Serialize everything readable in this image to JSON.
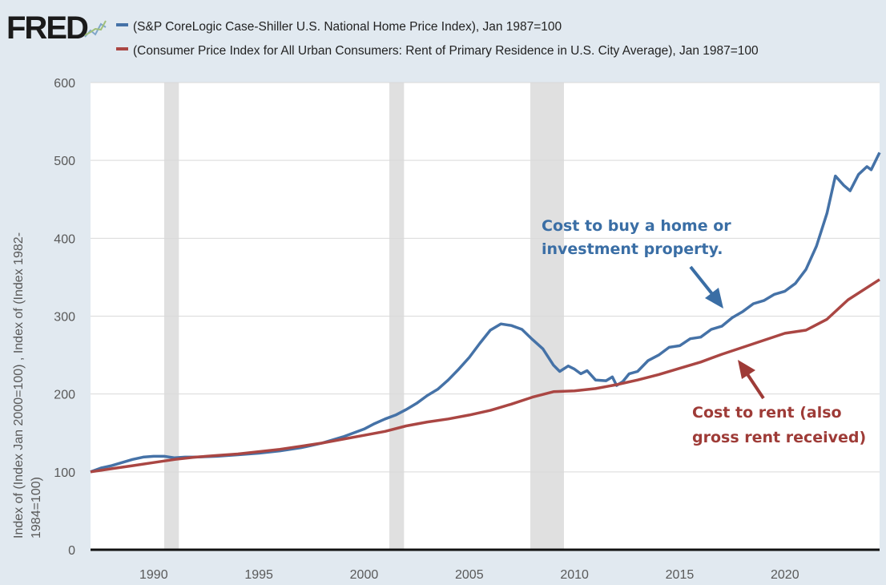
{
  "logo": {
    "text": "FRED"
  },
  "colors": {
    "series_home": "#4572a7",
    "series_rent": "#aa4643",
    "annotation_home": "#3a6ea5",
    "annotation_rent": "#9e3b37",
    "recession": "#e0e0e0",
    "grid": "#d9d9d9"
  },
  "chart_data": {
    "type": "line",
    "title": "",
    "xlabel": "",
    "ylabel": "Index of (Index Jan 2000=100) , Index of (Index 1982-1984=100)",
    "ylabel_lines": [
      "Index of (Index Jan 2000=100) , Index of (Index 1982-",
      "1984=100)"
    ],
    "xlim": [
      1987,
      2024.5
    ],
    "ylim": [
      0,
      600
    ],
    "yticks": [
      "0",
      "100",
      "200",
      "300",
      "400",
      "500",
      "600"
    ],
    "xticks": [
      "1990",
      "1995",
      "2000",
      "2005",
      "2010",
      "2015",
      "2020"
    ],
    "recessions": [
      [
        1990.5,
        1991.2
      ],
      [
        2001.2,
        2001.9
      ],
      [
        2007.9,
        2009.5
      ]
    ],
    "series": [
      {
        "name": "(S&P CoreLogic Case-Shiller U.S. National Home Price Index), Jan 1987=100",
        "points": [
          [
            1987.0,
            100
          ],
          [
            1987.5,
            105
          ],
          [
            1988.0,
            108
          ],
          [
            1988.5,
            112
          ],
          [
            1989.0,
            116
          ],
          [
            1989.5,
            119
          ],
          [
            1990.0,
            120
          ],
          [
            1990.5,
            120
          ],
          [
            1991.0,
            118
          ],
          [
            1991.5,
            119
          ],
          [
            1992.0,
            119
          ],
          [
            1993.0,
            120
          ],
          [
            1994.0,
            122
          ],
          [
            1995.0,
            124
          ],
          [
            1996.0,
            127
          ],
          [
            1997.0,
            131
          ],
          [
            1998.0,
            137
          ],
          [
            1999.0,
            145
          ],
          [
            2000.0,
            155
          ],
          [
            2000.5,
            162
          ],
          [
            2001.0,
            168
          ],
          [
            2001.5,
            173
          ],
          [
            2002.0,
            180
          ],
          [
            2002.5,
            188
          ],
          [
            2003.0,
            198
          ],
          [
            2003.5,
            206
          ],
          [
            2004.0,
            218
          ],
          [
            2004.5,
            232
          ],
          [
            2005.0,
            247
          ],
          [
            2005.5,
            265
          ],
          [
            2006.0,
            282
          ],
          [
            2006.5,
            290
          ],
          [
            2007.0,
            288
          ],
          [
            2007.5,
            283
          ],
          [
            2008.0,
            270
          ],
          [
            2008.5,
            258
          ],
          [
            2009.0,
            237
          ],
          [
            2009.3,
            229
          ],
          [
            2009.7,
            236
          ],
          [
            2010.0,
            232
          ],
          [
            2010.3,
            226
          ],
          [
            2010.6,
            230
          ],
          [
            2011.0,
            218
          ],
          [
            2011.5,
            217
          ],
          [
            2011.8,
            222
          ],
          [
            2012.0,
            211
          ],
          [
            2012.3,
            216
          ],
          [
            2012.6,
            226
          ],
          [
            2013.0,
            229
          ],
          [
            2013.5,
            243
          ],
          [
            2014.0,
            250
          ],
          [
            2014.5,
            260
          ],
          [
            2015.0,
            262
          ],
          [
            2015.5,
            271
          ],
          [
            2016.0,
            273
          ],
          [
            2016.5,
            283
          ],
          [
            2017.0,
            287
          ],
          [
            2017.5,
            298
          ],
          [
            2018.0,
            306
          ],
          [
            2018.5,
            316
          ],
          [
            2019.0,
            320
          ],
          [
            2019.5,
            328
          ],
          [
            2020.0,
            332
          ],
          [
            2020.5,
            342
          ],
          [
            2021.0,
            360
          ],
          [
            2021.5,
            390
          ],
          [
            2022.0,
            432
          ],
          [
            2022.4,
            480
          ],
          [
            2022.8,
            468
          ],
          [
            2023.1,
            461
          ],
          [
            2023.5,
            482
          ],
          [
            2023.9,
            492
          ],
          [
            2024.1,
            488
          ],
          [
            2024.5,
            510
          ]
        ]
      },
      {
        "name": "(Consumer Price Index for All Urban Consumers: Rent of Primary Residence in U.S. City Average), Jan 1987=100",
        "points": [
          [
            1987.0,
            100
          ],
          [
            1988.0,
            104
          ],
          [
            1989.0,
            108
          ],
          [
            1990.0,
            112
          ],
          [
            1991.0,
            116
          ],
          [
            1992.0,
            119
          ],
          [
            1993.0,
            121
          ],
          [
            1994.0,
            123
          ],
          [
            1995.0,
            126
          ],
          [
            1996.0,
            129
          ],
          [
            1997.0,
            133
          ],
          [
            1998.0,
            137
          ],
          [
            1999.0,
            142
          ],
          [
            2000.0,
            147
          ],
          [
            2001.0,
            152
          ],
          [
            2002.0,
            159
          ],
          [
            2003.0,
            164
          ],
          [
            2004.0,
            168
          ],
          [
            2005.0,
            173
          ],
          [
            2006.0,
            179
          ],
          [
            2007.0,
            187
          ],
          [
            2008.0,
            196
          ],
          [
            2009.0,
            203
          ],
          [
            2010.0,
            204
          ],
          [
            2011.0,
            207
          ],
          [
            2012.0,
            212
          ],
          [
            2013.0,
            218
          ],
          [
            2014.0,
            225
          ],
          [
            2015.0,
            233
          ],
          [
            2016.0,
            241
          ],
          [
            2017.0,
            251
          ],
          [
            2018.0,
            260
          ],
          [
            2019.0,
            269
          ],
          [
            2020.0,
            278
          ],
          [
            2021.0,
            282
          ],
          [
            2022.0,
            296
          ],
          [
            2023.0,
            321
          ],
          [
            2024.5,
            347
          ]
        ]
      }
    ],
    "annotations": [
      {
        "lines": [
          "Cost to buy a home or",
          "investment property."
        ],
        "series": 0
      },
      {
        "lines": [
          "Cost to rent (also",
          "gross rent received)"
        ],
        "series": 1
      }
    ]
  }
}
